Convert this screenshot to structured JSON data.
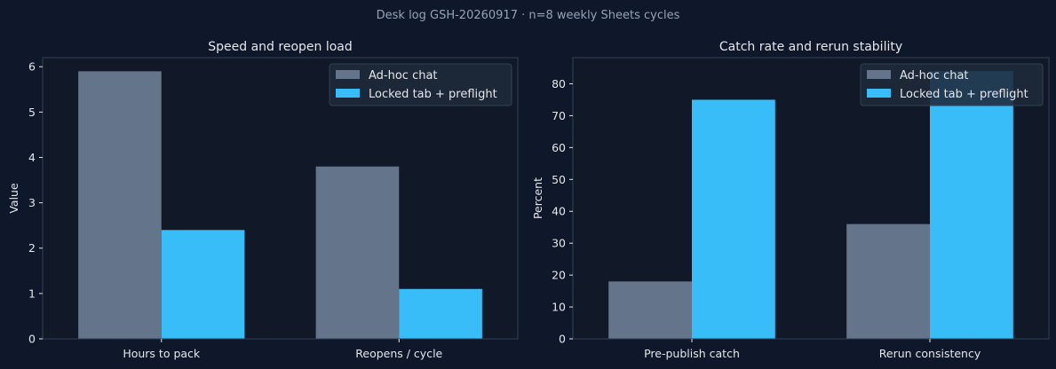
{
  "figure": {
    "suptitle": "Desk log GSH-20260917 · n=8 weekly Sheets cycles",
    "background": "#0f172a",
    "axes_face": "#111827",
    "spine_color": "#334155"
  },
  "chart_data": [
    {
      "type": "bar",
      "title": "Speed and reopen load",
      "xlabel": "",
      "ylabel": "Value",
      "ylim": [
        0,
        6.2
      ],
      "yticks": [
        0,
        1,
        2,
        3,
        4,
        5,
        6
      ],
      "categories": [
        "Hours to pack",
        "Reopens / cycle"
      ],
      "series": [
        {
          "name": "Ad-hoc chat",
          "values": [
            5.9,
            3.8
          ],
          "color": "#64748b"
        },
        {
          "name": "Locked tab + preflight",
          "values": [
            2.4,
            1.1
          ],
          "color": "#38bdf8"
        }
      ],
      "legend": "top-right",
      "grid": false
    },
    {
      "type": "bar",
      "title": "Catch rate and rerun stability",
      "xlabel": "",
      "ylabel": "Percent",
      "ylim": [
        0,
        88.2
      ],
      "yticks": [
        0,
        10,
        20,
        30,
        40,
        50,
        60,
        70,
        80
      ],
      "categories": [
        "Pre-publish catch",
        "Rerun consistency"
      ],
      "series": [
        {
          "name": "Ad-hoc chat",
          "values": [
            18,
            36
          ],
          "color": "#64748b"
        },
        {
          "name": "Locked tab + preflight",
          "values": [
            75,
            84
          ],
          "color": "#38bdf8"
        }
      ],
      "legend": "top-right",
      "grid": false
    }
  ]
}
